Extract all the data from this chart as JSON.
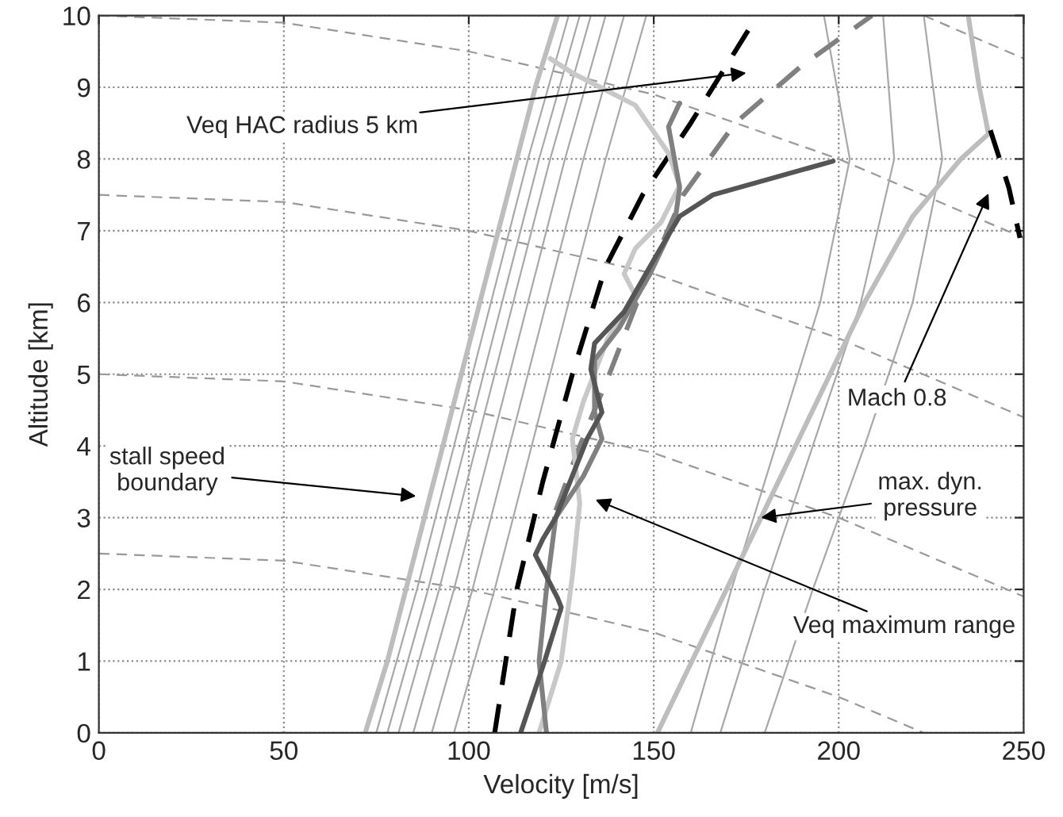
{
  "chart_data": {
    "type": "line",
    "xlabel": "Velocity [m/s]",
    "ylabel": "Altitude [km]",
    "xlim": [
      0,
      250
    ],
    "ylim": [
      0,
      10
    ],
    "xticks": [
      0,
      50,
      100,
      150,
      200,
      250
    ],
    "yticks": [
      0,
      1,
      2,
      3,
      4,
      5,
      6,
      7,
      8,
      9,
      10
    ],
    "grid": true,
    "legend": false,
    "series": [
      {
        "color": "#999999",
        "line_style": "dashed",
        "x": [
          223,
          250
        ],
        "values": [
          10,
          9.4
        ]
      },
      {
        "color": "#999999",
        "line_style": "dashed",
        "x": [
          0,
          50,
          100,
          150,
          200,
          250
        ],
        "values": [
          10,
          9.9,
          9.5,
          8.9,
          8.0,
          6.9
        ]
      },
      {
        "color": "#999999",
        "line_style": "dashed",
        "x": [
          0,
          50,
          100,
          150,
          200,
          250
        ],
        "values": [
          7.5,
          7.4,
          7.0,
          6.4,
          5.5,
          4.4
        ]
      },
      {
        "color": "#999999",
        "line_style": "dashed",
        "x": [
          0,
          50,
          100,
          150,
          200,
          250
        ],
        "values": [
          5,
          4.9,
          4.5,
          3.9,
          3.0,
          1.9
        ]
      },
      {
        "color": "#999999",
        "line_style": "dashed",
        "x": [
          0,
          50,
          100,
          150,
          200,
          223
        ],
        "values": [
          2.5,
          2.4,
          2.0,
          1.4,
          0.5,
          0
        ]
      },
      {
        "color": "#a8a8a8",
        "line_style": "solid",
        "x": [
          75,
          86,
          96,
          106,
          116,
          127
        ],
        "values": [
          0,
          2,
          4,
          6,
          8,
          10
        ]
      },
      {
        "color": "#a8a8a8",
        "line_style": "solid",
        "x": [
          78,
          89,
          99,
          109,
          119,
          130
        ],
        "values": [
          0,
          2,
          4,
          6,
          8,
          10
        ]
      },
      {
        "color": "#a8a8a8",
        "line_style": "solid",
        "x": [
          81,
          92,
          102,
          112,
          122,
          133
        ],
        "values": [
          0,
          2,
          4,
          6,
          8,
          10
        ]
      },
      {
        "color": "#a8a8a8",
        "line_style": "solid",
        "x": [
          85,
          96,
          106,
          116,
          126,
          137
        ],
        "values": [
          0,
          2,
          4,
          6,
          8,
          10
        ]
      },
      {
        "color": "#a8a8a8",
        "line_style": "solid",
        "x": [
          90,
          101,
          111,
          121,
          131,
          142
        ],
        "values": [
          0,
          2,
          4,
          6,
          8,
          10
        ]
      },
      {
        "color": "#a8a8a8",
        "line_style": "solid",
        "x": [
          96,
          107,
          117,
          127,
          137,
          148
        ],
        "values": [
          0,
          2,
          4,
          6,
          8,
          10
        ]
      },
      {
        "color": "#a8a8a8",
        "line_style": "solid",
        "x": [
          160,
          171,
          183,
          195,
          203,
          196
        ],
        "values": [
          0,
          2,
          4,
          6,
          8,
          10
        ]
      },
      {
        "color": "#a8a8a8",
        "line_style": "solid",
        "x": [
          168,
          180,
          193,
          206,
          215,
          212
        ],
        "values": [
          0,
          2,
          4,
          6,
          8,
          10
        ]
      },
      {
        "color": "#a8a8a8",
        "line_style": "solid",
        "x": [
          180,
          193,
          207,
          220,
          228,
          223
        ],
        "values": [
          0,
          2,
          4,
          6,
          8,
          10
        ]
      },
      {
        "color": "#bdbdbd",
        "line_style": "solid",
        "x": [
          72,
          78,
          83,
          88,
          93,
          98,
          103,
          108,
          113,
          118,
          124
        ],
        "values": [
          0,
          1,
          2,
          3,
          4,
          5,
          6,
          7,
          8,
          9,
          10
        ]
      },
      {
        "color": "#bdbdbd",
        "line_style": "solid",
        "x": [
          151,
          165,
          179,
          193,
          207,
          220,
          233,
          240.5,
          238,
          235
        ],
        "values": [
          0,
          1.5,
          3,
          4.5,
          6,
          7.2,
          8,
          8.35,
          9,
          10
        ]
      },
      {
        "color": "#000000",
        "line_style": "dashed",
        "x": [
          241,
          246,
          249
        ],
        "values": [
          8.4,
          7.6,
          6.9
        ]
      },
      {
        "color": "#000000",
        "line_style": "dashed",
        "x": [
          107,
          113,
          120,
          128,
          137,
          147,
          160,
          178
        ],
        "values": [
          0,
          2,
          3.5,
          5,
          6.5,
          7.5,
          8.5,
          10
        ]
      },
      {
        "color": "#808080",
        "line_style": "dashed",
        "x": [
          123.5,
          130,
          138,
          147,
          158,
          172,
          190,
          209
        ],
        "values": [
          3.1,
          4,
          5,
          6.2,
          7.5,
          8.5,
          9.3,
          10
        ]
      },
      {
        "color": "#c8c8c8",
        "line_style": "solid",
        "x": [
          119,
          125,
          128,
          130,
          128,
          131,
          137.6,
          145,
          142,
          145,
          152,
          157,
          154,
          145,
          128,
          122
        ],
        "values": [
          0,
          1,
          2.19,
          3.2,
          4.1,
          4.62,
          5.5,
          6.1,
          6.4,
          6.75,
          7.12,
          7.63,
          8.08,
          8.75,
          9.2,
          9.4
        ]
      },
      {
        "color": "#808080",
        "line_style": "solid",
        "x": [
          121,
          119,
          121,
          123.5,
          131,
          136,
          134,
          134,
          140.6,
          149,
          155.7,
          157,
          154,
          157
        ],
        "values": [
          0,
          1,
          2,
          3,
          3.58,
          4.1,
          4.47,
          5.2,
          5.64,
          6.4,
          7.12,
          7.6,
          8.45,
          8.78
        ]
      },
      {
        "color": "#555555",
        "line_style": "solid",
        "x": [
          114,
          120.5,
          125,
          124,
          118,
          120,
          123.5,
          132,
          136,
          133,
          134,
          142,
          151,
          157,
          166,
          198.5
        ],
        "values": [
          0,
          1.0,
          1.75,
          1.88,
          2.48,
          2.7,
          3.0,
          4.1,
          4.47,
          5.07,
          5.43,
          5.87,
          6.68,
          7.2,
          7.5,
          7.97
        ]
      }
    ],
    "annotations": [
      "Veq HAC radius 5 km",
      "stall speed\nboundary",
      "Mach 0.8",
      {
        "text": "max. dyn.\npressure",
        "x": 179,
        "y": 3
      },
      "Veq maximum range"
    ]
  }
}
